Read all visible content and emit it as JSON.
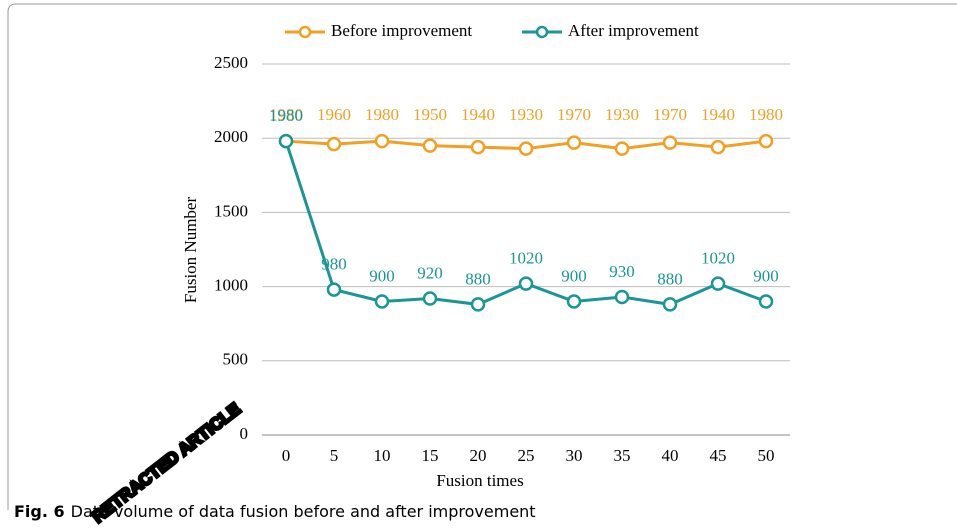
{
  "chart_data": {
    "type": "line",
    "x_label": "Fusion times",
    "y_label": "Fusion Number",
    "categories": [
      "0",
      "5",
      "10",
      "15",
      "20",
      "25",
      "30",
      "35",
      "40",
      "45",
      "50"
    ],
    "series": [
      {
        "name": "Before improvement",
        "color": "#f0a023",
        "values": [
          1980,
          1960,
          1980,
          1950,
          1940,
          1930,
          1970,
          1930,
          1970,
          1940,
          1980
        ]
      },
      {
        "name": "After improvement",
        "color": "#1a9696",
        "values": [
          1980,
          980,
          900,
          920,
          880,
          1020,
          900,
          930,
          880,
          1020,
          900
        ]
      }
    ],
    "ylim": [
      0,
      2500
    ],
    "yticks": [
      0,
      500,
      1000,
      1500,
      2000,
      2500
    ],
    "grid": true,
    "legend": "top"
  },
  "caption": {
    "label": "Fig. 6",
    "text": "Data volume of data fusion before and after improvement"
  },
  "watermark": "RETRACTED ARTICLE"
}
